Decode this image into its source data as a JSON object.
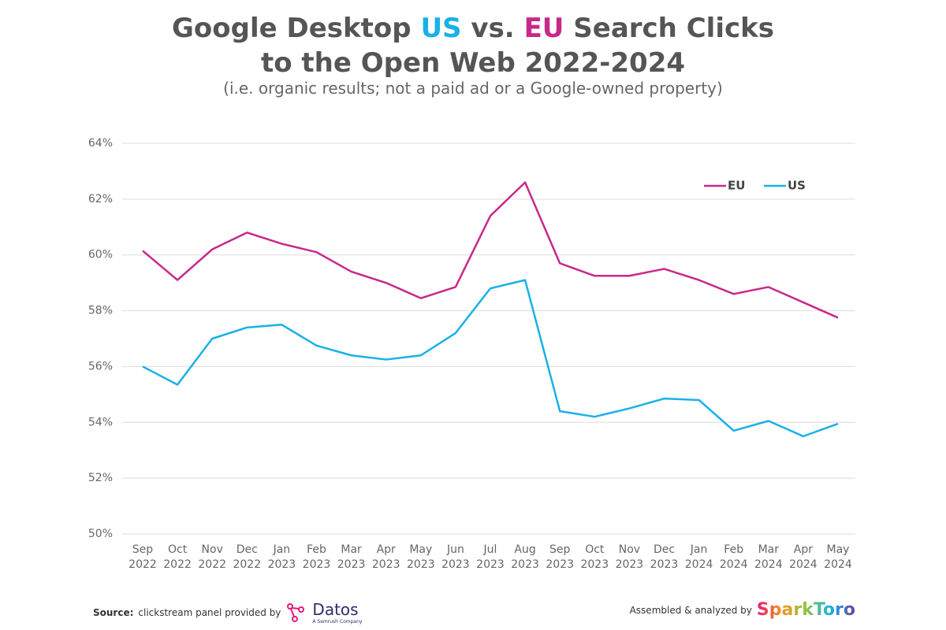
{
  "chart_data": {
    "type": "line",
    "title": [
      "Google Desktop",
      "US",
      "vs.",
      "EU",
      "Search Clicks",
      "to the Open Web 2022-2024"
    ],
    "subtitle": "(i.e. organic results; not a paid ad or a Google-owned property)",
    "categories": [
      "Sep 2022",
      "Oct 2022",
      "Nov 2022",
      "Dec 2022",
      "Jan 2023",
      "Feb 2023",
      "Mar 2023",
      "Apr 2023",
      "May 2023",
      "Jun 2023",
      "Jul 2023",
      "Aug 2023",
      "Sep 2023",
      "Oct 2023",
      "Nov 2023",
      "Dec 2023",
      "Jan 2024",
      "Feb 2024",
      "Mar 2024",
      "Apr 2024",
      "May 2024"
    ],
    "series": [
      {
        "name": "EU",
        "color": "#c8288a",
        "values": [
          60.15,
          59.1,
          60.2,
          60.8,
          60.4,
          60.1,
          59.4,
          59.0,
          58.45,
          58.85,
          61.4,
          62.6,
          59.7,
          59.25,
          59.25,
          59.5,
          59.1,
          58.6,
          58.85,
          58.3,
          57.75
        ]
      },
      {
        "name": "US",
        "color": "#1ab0e8",
        "values": [
          56.0,
          55.35,
          57.0,
          57.4,
          57.5,
          56.75,
          56.4,
          56.25,
          56.4,
          57.2,
          58.8,
          59.1,
          54.4,
          54.2,
          54.5,
          54.85,
          54.8,
          53.7,
          54.05,
          53.5,
          53.95
        ]
      }
    ],
    "ylim": [
      50,
      64
    ],
    "yticks": [
      {
        "value": 50,
        "label": "50%"
      },
      {
        "value": 52,
        "label": "52%"
      },
      {
        "value": 54,
        "label": "54%"
      },
      {
        "value": 56,
        "label": "56%"
      },
      {
        "value": 58,
        "label": "58%"
      },
      {
        "value": 60,
        "label": "60%"
      },
      {
        "value": 62,
        "label": "62%"
      },
      {
        "value": 64,
        "label": "64%"
      }
    ],
    "grid": true,
    "legend": "top-right"
  },
  "footer": {
    "source_label": "Source:",
    "source_text": "clickstream panel provided by",
    "datos": "Datos",
    "datos_sub": "A Semrush Company",
    "assembled": "Assembled & analyzed by",
    "sparktoro": "SparkToro"
  }
}
